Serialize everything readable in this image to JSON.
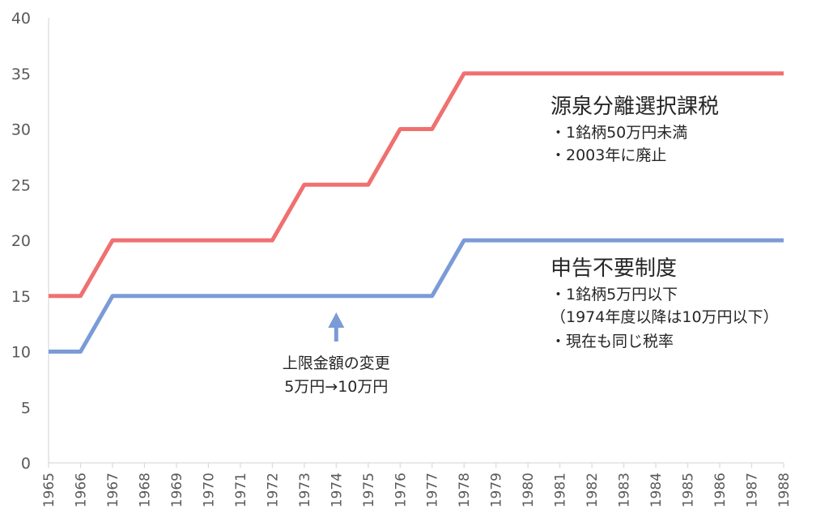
{
  "chart_data": {
    "type": "line",
    "x": [
      "1965",
      "1966",
      "1967",
      "1968",
      "1969",
      "1970",
      "1971",
      "1972",
      "1973",
      "1974",
      "1975",
      "1976",
      "1977",
      "1978",
      "1979",
      "1980",
      "1981",
      "1982",
      "1983",
      "1984",
      "1985",
      "1986",
      "1987",
      "1988"
    ],
    "ylim": [
      0,
      40
    ],
    "yticks": [
      0,
      5,
      10,
      15,
      20,
      25,
      30,
      35,
      40
    ],
    "grid": false,
    "series": [
      {
        "name": "源泉分離選択課税",
        "color": "#f07070",
        "values": [
          15,
          15,
          20,
          20,
          20,
          20,
          20,
          20,
          25,
          25,
          25,
          30,
          30,
          35,
          35,
          35,
          35,
          35,
          35,
          35,
          35,
          35,
          35,
          35
        ]
      },
      {
        "name": "申告不要制度",
        "color": "#7b9bd6",
        "values": [
          10,
          10,
          15,
          15,
          15,
          15,
          15,
          15,
          15,
          15,
          15,
          15,
          15,
          20,
          20,
          20,
          20,
          20,
          20,
          20,
          20,
          20,
          20,
          20
        ]
      }
    ],
    "annotations": {
      "red": {
        "title": "源泉分離選択課税",
        "items": [
          "・1銘柄50万円未満",
          "・2003年に廃止"
        ]
      },
      "blue": {
        "title": "申告不要制度",
        "items": [
          "・1銘柄5万円以下",
          "（1974年度以降は10万円以下）",
          "・現在も同じ税率"
        ]
      },
      "arrow": {
        "x": "1974",
        "color": "#7b9bd6",
        "lines": [
          "上限金額の変更",
          "5万円→10万円"
        ]
      }
    }
  }
}
